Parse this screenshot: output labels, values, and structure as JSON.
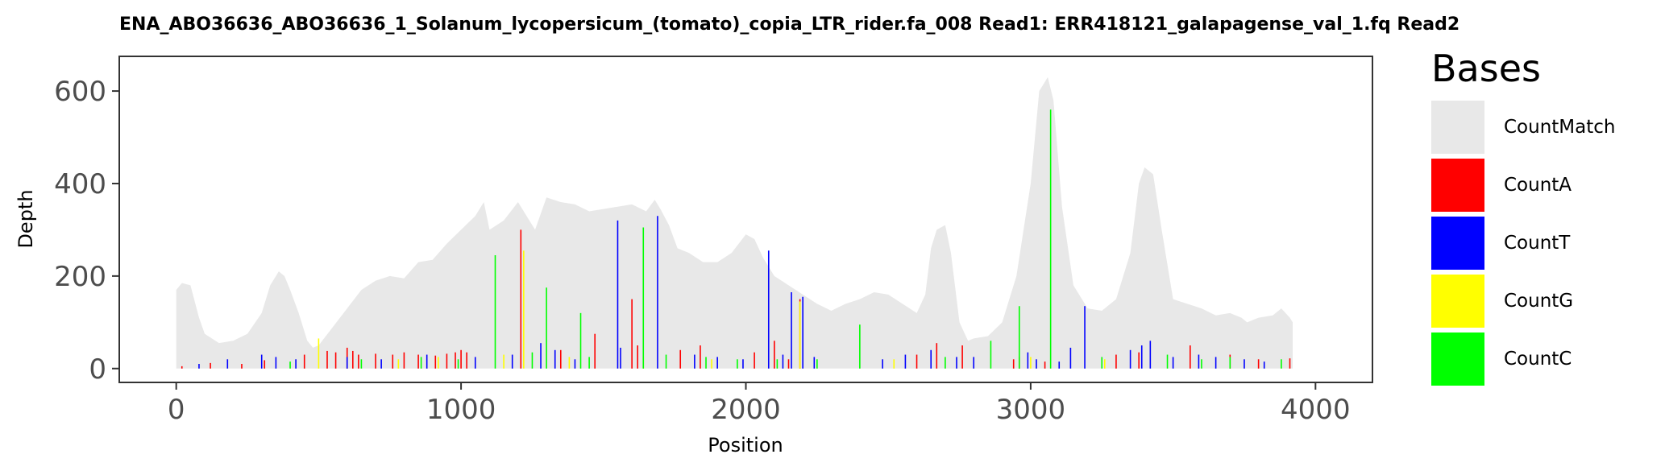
{
  "chart_data": {
    "type": "area",
    "title": "ENA_ABO36636_ABO36636_1_Solanum_lycopersicum_(tomato)_copia_LTR_rider.fa_008   Read1: ERR418121_galapagense_val_1.fq   Read2",
    "xlabel": "Position",
    "ylabel": "Depth",
    "xlim": [
      -200,
      4200
    ],
    "ylim": [
      -30,
      675
    ],
    "x_ticks": [
      0,
      1000,
      2000,
      3000,
      4000
    ],
    "y_ticks": [
      0,
      200,
      400,
      600
    ],
    "grid": false,
    "legend": {
      "title": "Bases",
      "position": "right",
      "entries": [
        {
          "name": "CountMatch",
          "color": "#e8e8e8"
        },
        {
          "name": "CountA",
          "color": "#ff0000"
        },
        {
          "name": "CountT",
          "color": "#0000ff"
        },
        {
          "name": "CountG",
          "color": "#ffff00"
        },
        {
          "name": "CountC",
          "color": "#00ff00"
        }
      ]
    },
    "coverage": {
      "name": "CountMatch",
      "color": "#e8e8e8",
      "x": [
        0,
        20,
        50,
        80,
        100,
        150,
        200,
        250,
        300,
        330,
        360,
        380,
        400,
        430,
        460,
        480,
        500,
        550,
        600,
        650,
        700,
        750,
        800,
        850,
        900,
        950,
        1000,
        1050,
        1080,
        1100,
        1150,
        1200,
        1230,
        1260,
        1300,
        1350,
        1400,
        1450,
        1500,
        1550,
        1600,
        1650,
        1680,
        1700,
        1730,
        1760,
        1800,
        1850,
        1900,
        1950,
        2000,
        2030,
        2060,
        2100,
        2150,
        2200,
        2250,
        2300,
        2350,
        2400,
        2450,
        2500,
        2550,
        2600,
        2630,
        2650,
        2670,
        2700,
        2720,
        2750,
        2780,
        2800,
        2850,
        2900,
        2950,
        3000,
        3030,
        3060,
        3080,
        3110,
        3150,
        3200,
        3250,
        3300,
        3350,
        3380,
        3400,
        3430,
        3460,
        3500,
        3550,
        3600,
        3650,
        3700,
        3740,
        3760,
        3800,
        3850,
        3880,
        3910,
        3920
      ],
      "values": [
        170,
        185,
        180,
        110,
        75,
        55,
        60,
        75,
        120,
        180,
        210,
        200,
        170,
        120,
        60,
        45,
        50,
        90,
        130,
        170,
        190,
        200,
        195,
        230,
        235,
        270,
        300,
        330,
        360,
        300,
        320,
        360,
        330,
        300,
        370,
        360,
        355,
        340,
        345,
        350,
        355,
        340,
        365,
        345,
        310,
        260,
        250,
        230,
        230,
        250,
        290,
        280,
        240,
        200,
        180,
        160,
        140,
        125,
        140,
        150,
        165,
        160,
        140,
        120,
        160,
        260,
        300,
        310,
        250,
        100,
        60,
        65,
        70,
        100,
        200,
        400,
        600,
        630,
        580,
        350,
        180,
        130,
        125,
        150,
        250,
        400,
        435,
        420,
        300,
        150,
        140,
        130,
        115,
        120,
        110,
        100,
        110,
        115,
        130,
        110,
        100
      ]
    },
    "series": [
      {
        "name": "CountA",
        "color": "#ff0000",
        "x": [
          20,
          120,
          230,
          310,
          450,
          530,
          560,
          600,
          620,
          640,
          700,
          760,
          800,
          850,
          910,
          950,
          980,
          1000,
          1020,
          1210,
          1350,
          1470,
          1600,
          1620,
          1770,
          1840,
          2030,
          2100,
          2150,
          2190,
          2600,
          2670,
          2760,
          2940,
          2960,
          3050,
          3300,
          3380,
          3560,
          3700,
          3800,
          3910
        ],
        "values": [
          5,
          12,
          10,
          18,
          30,
          38,
          35,
          45,
          38,
          30,
          32,
          30,
          35,
          30,
          28,
          32,
          35,
          40,
          35,
          300,
          40,
          75,
          150,
          50,
          40,
          50,
          35,
          60,
          20,
          150,
          30,
          55,
          50,
          20,
          25,
          15,
          30,
          35,
          50,
          30,
          20,
          22
        ]
      },
      {
        "name": "CountT",
        "color": "#0000ff",
        "x": [
          80,
          180,
          300,
          350,
          420,
          600,
          720,
          880,
          1050,
          1180,
          1280,
          1330,
          1400,
          1550,
          1560,
          1690,
          1820,
          1900,
          1990,
          2080,
          2130,
          2160,
          2200,
          2240,
          2480,
          2560,
          2650,
          2740,
          2800,
          2990,
          3020,
          3100,
          3140,
          3190,
          3350,
          3390,
          3420,
          3500,
          3590,
          3650,
          3750,
          3820
        ],
        "values": [
          10,
          20,
          30,
          25,
          20,
          25,
          20,
          30,
          25,
          30,
          55,
          40,
          20,
          320,
          45,
          330,
          30,
          25,
          20,
          255,
          30,
          165,
          155,
          25,
          20,
          30,
          40,
          25,
          25,
          35,
          20,
          15,
          45,
          135,
          40,
          50,
          60,
          25,
          30,
          25,
          20,
          15
        ]
      },
      {
        "name": "CountG",
        "color": "#ffff00",
        "x": [
          500,
          780,
          920,
          1150,
          1220,
          1380,
          1640,
          1880,
          2190,
          2520,
          3000,
          3260
        ],
        "values": [
          65,
          20,
          25,
          30,
          255,
          25,
          25,
          20,
          145,
          20,
          25,
          20
        ]
      },
      {
        "name": "CountC",
        "color": "#00ff00",
        "x": [
          400,
          650,
          860,
          990,
          1120,
          1250,
          1300,
          1420,
          1450,
          1640,
          1720,
          1860,
          1970,
          2110,
          2250,
          2400,
          2700,
          2860,
          2960,
          3070,
          3250,
          3480,
          3600,
          3700,
          3880
        ],
        "values": [
          15,
          20,
          25,
          20,
          245,
          35,
          175,
          120,
          25,
          305,
          30,
          25,
          20,
          20,
          20,
          95,
          25,
          60,
          135,
          560,
          25,
          30,
          20,
          25,
          20
        ]
      }
    ]
  }
}
